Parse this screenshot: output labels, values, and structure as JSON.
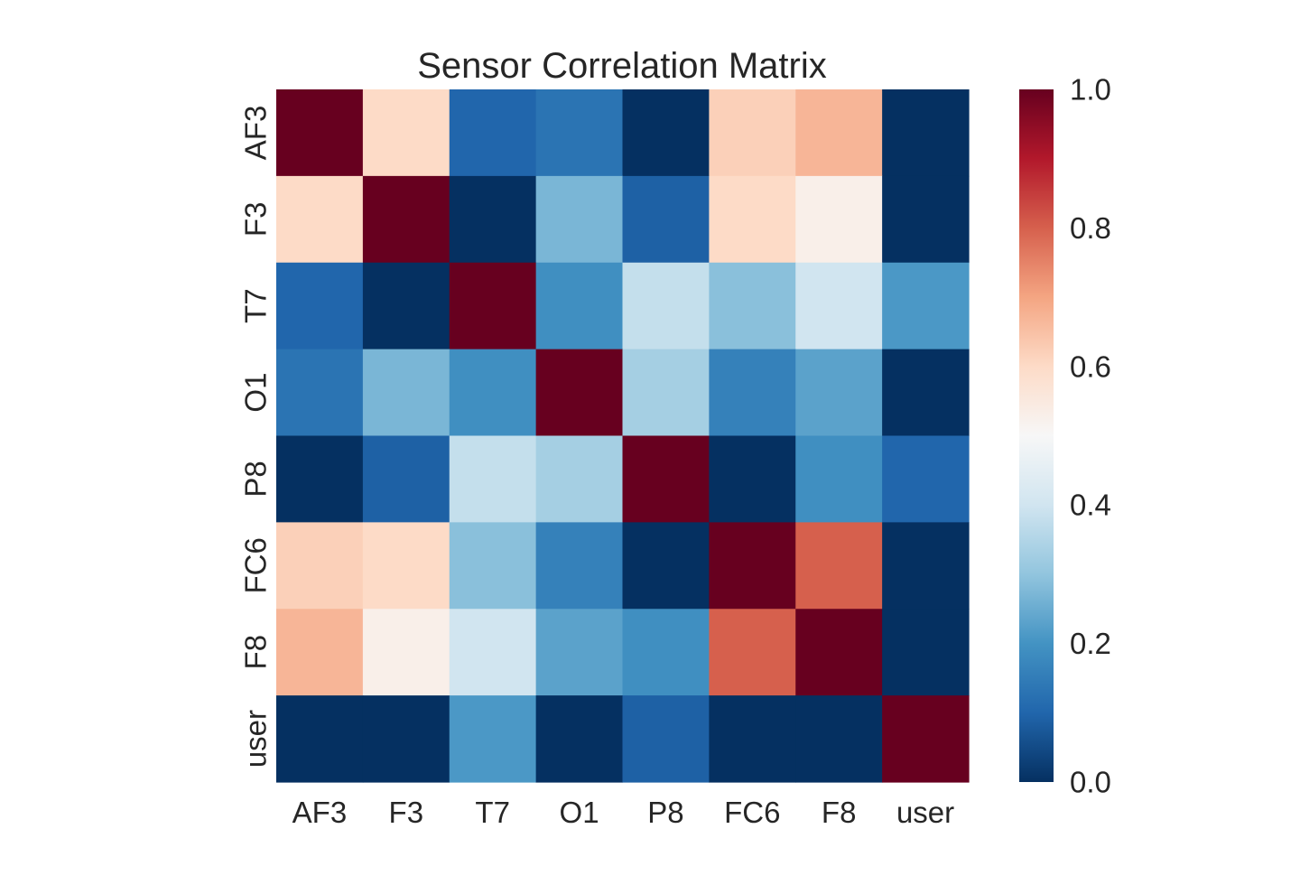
{
  "chart_data": {
    "type": "heatmap",
    "title": "Sensor Correlation Matrix",
    "xlabel": "",
    "ylabel": "",
    "x_categories": [
      "AF3",
      "F3",
      "T7",
      "O1",
      "P8",
      "FC6",
      "F8",
      "user"
    ],
    "y_categories": [
      "AF3",
      "F3",
      "T7",
      "O1",
      "P8",
      "FC6",
      "F8",
      "user"
    ],
    "values": [
      [
        1.0,
        0.6,
        0.1,
        0.13,
        0.0,
        0.62,
        0.67,
        0.0
      ],
      [
        0.6,
        1.0,
        0.0,
        0.27,
        0.09,
        0.6,
        0.53,
        0.0
      ],
      [
        0.1,
        0.0,
        1.0,
        0.19,
        0.38,
        0.29,
        0.4,
        0.21
      ],
      [
        0.13,
        0.27,
        0.19,
        1.0,
        0.33,
        0.16,
        0.23,
        0.0
      ],
      [
        0.0,
        0.09,
        0.38,
        0.33,
        1.0,
        0.0,
        0.19,
        0.1
      ],
      [
        0.62,
        0.6,
        0.29,
        0.16,
        0.0,
        1.0,
        0.8,
        0.0
      ],
      [
        0.67,
        0.53,
        0.4,
        0.23,
        0.19,
        0.8,
        1.0,
        0.0
      ],
      [
        0.0,
        0.0,
        0.21,
        0.0,
        0.09,
        0.0,
        0.0,
        1.0
      ]
    ],
    "colormap": "RdBu_r",
    "vmin": 0.0,
    "vmax": 1.0,
    "colorbar_ticks": [
      "0.0",
      "0.2",
      "0.4",
      "0.6",
      "0.8",
      "1.0"
    ],
    "colorbar_tick_values": [
      0.0,
      0.2,
      0.4,
      0.6,
      0.8,
      1.0
    ],
    "colormap_stops": [
      "#053061",
      "#2166ac",
      "#4393c3",
      "#92c5de",
      "#d1e5f0",
      "#f7f7f7",
      "#fddbc7",
      "#f4a582",
      "#d6604d",
      "#b2182b",
      "#67001f"
    ],
    "grid": false,
    "legend": "colorbar-right"
  }
}
